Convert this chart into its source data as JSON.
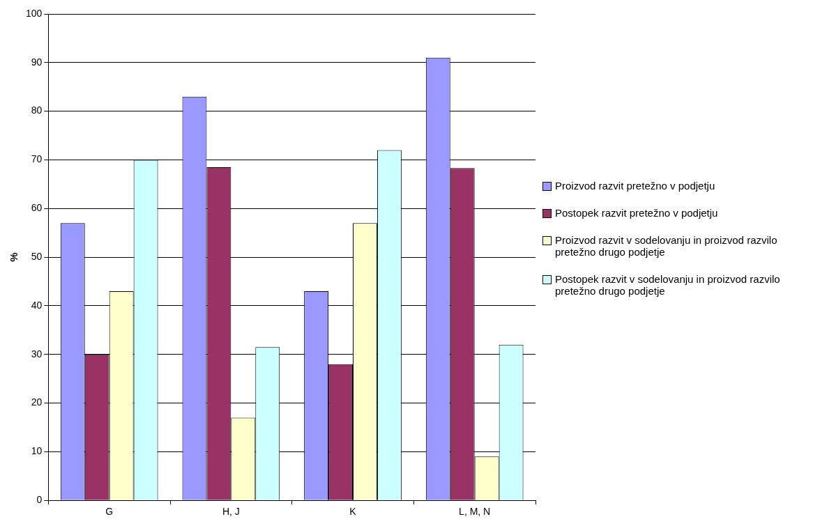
{
  "chart_data": {
    "type": "bar",
    "ylabel": "%",
    "categories": [
      "G",
      "H, J",
      "K",
      "L, M, N"
    ],
    "series": [
      {
        "name": "Proizvod razvit pretežno v podjetju",
        "color": "#9999ff",
        "values": [
          57,
          83,
          43,
          91
        ]
      },
      {
        "name": "Postopek razvit pretežno v podjetju",
        "color": "#993366",
        "values": [
          30,
          68.5,
          28,
          68.3
        ]
      },
      {
        "name": "Proizvod razvit v sodelovanju in proizvod razvilo pretežno drugo podjetje",
        "color": "#ffffcc",
        "values": [
          43,
          17,
          57,
          9
        ]
      },
      {
        "name": "Postopek razvit v sodelovanju in proizvod razvilo pretežno drugo podjetje",
        "color": "#ccffff",
        "values": [
          70,
          31.5,
          72,
          32
        ]
      }
    ],
    "ylim": [
      0,
      100
    ],
    "yticks": [
      0,
      10,
      20,
      30,
      40,
      50,
      60,
      70,
      80,
      90,
      100
    ],
    "grid": "y",
    "legend": "right"
  }
}
